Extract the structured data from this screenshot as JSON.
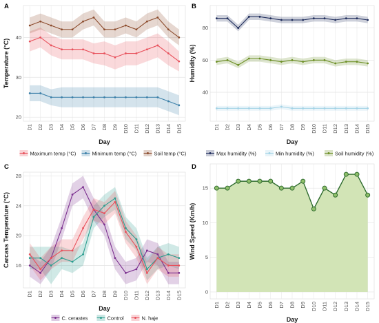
{
  "chart_data": [
    {
      "panel": "A",
      "type": "line",
      "xlabel": "Day",
      "ylabel": "Temperature (°C)",
      "categories": [
        "D1",
        "D2",
        "D3",
        "D4",
        "D5",
        "D6",
        "D7",
        "D8",
        "D9",
        "D10",
        "D11",
        "D12",
        "D13",
        "D14",
        "D15"
      ],
      "ylim": [
        19,
        48
      ],
      "yticks": [
        20,
        30,
        40
      ],
      "grid": true,
      "legend": "bottom",
      "series": [
        {
          "name": "Maximum temp (°C)",
          "color": "#e8505b",
          "values": [
            39,
            40,
            38,
            37,
            37,
            37,
            36,
            36,
            35,
            36,
            36,
            37,
            38,
            36,
            34
          ],
          "band": [
            2.5,
            2.5,
            2.5,
            2.5,
            2.5,
            2.5,
            2.5,
            3,
            3,
            3,
            3,
            3,
            3,
            3,
            2.5
          ]
        },
        {
          "name": "Minimum temp (°C)",
          "color": "#3a7fa8",
          "values": [
            26,
            26,
            25,
            25,
            25,
            25,
            25,
            25,
            25,
            25,
            25,
            25,
            25,
            24,
            23
          ],
          "band": [
            2,
            2,
            2,
            2.5,
            2.5,
            2.5,
            2.5,
            2.5,
            2.5,
            2.5,
            2.5,
            2.5,
            2.5,
            2.5,
            2.5
          ]
        },
        {
          "name": "Soil temp (°C)",
          "color": "#8b4a2b",
          "values": [
            43,
            44,
            43,
            42,
            42,
            44,
            45,
            42,
            42,
            43,
            42,
            44,
            45,
            42,
            40
          ],
          "band": [
            2,
            2,
            2,
            2,
            2,
            2,
            2,
            2,
            2,
            2,
            2,
            2,
            2,
            2,
            2
          ]
        }
      ]
    },
    {
      "panel": "B",
      "type": "line",
      "xlabel": "Day",
      "ylabel": "Humidity (%)",
      "categories": [
        "D1",
        "D2",
        "D3",
        "D4",
        "D5",
        "D6",
        "D7",
        "D8",
        "D9",
        "D10",
        "D11",
        "D12",
        "D13",
        "D14",
        "D15"
      ],
      "ylim": [
        22,
        94
      ],
      "yticks": [
        40,
        60,
        80
      ],
      "grid": true,
      "legend": "bottom",
      "series": [
        {
          "name": "Max humidity (%)",
          "color": "#1f2d5c",
          "values": [
            86,
            86,
            80,
            87,
            87,
            86,
            85,
            85,
            85,
            86,
            86,
            85,
            86,
            86,
            85
          ],
          "band": [
            2,
            2,
            2,
            2,
            2,
            2,
            2,
            2,
            2,
            2,
            2,
            2,
            2,
            2,
            2
          ]
        },
        {
          "name": "Min humidity (%)",
          "color": "#a3d3e6",
          "values": [
            30,
            30,
            30,
            30,
            30,
            30,
            31,
            30,
            30,
            30,
            30,
            30,
            30,
            30,
            30
          ],
          "band": [
            1.5,
            1.5,
            1.5,
            1.5,
            1.5,
            1.5,
            1.5,
            1.5,
            1.5,
            1.5,
            1.5,
            1.5,
            1.5,
            1.5,
            1.5
          ]
        },
        {
          "name": "Soil humidity (%)",
          "color": "#6b8e23",
          "values": [
            59,
            60,
            57,
            61,
            61,
            60,
            59,
            60,
            59,
            60,
            60,
            58,
            59,
            59,
            58
          ],
          "band": [
            2,
            2,
            2,
            2,
            2,
            2,
            2,
            2,
            2,
            2,
            2,
            2,
            2,
            2,
            2
          ]
        }
      ]
    },
    {
      "panel": "C",
      "type": "line",
      "xlabel": "Day",
      "ylabel": "Carcass Temperature (°C)",
      "categories": [
        "D1",
        "D2",
        "D3",
        "D4",
        "D5",
        "D6",
        "D7",
        "D8",
        "D9",
        "D10",
        "D11",
        "D12",
        "D13",
        "D14",
        "D15"
      ],
      "ylim": [
        13,
        28.5
      ],
      "yticks": [
        16,
        20,
        24,
        28
      ],
      "grid": true,
      "legend": "bottom",
      "series": [
        {
          "name": "C. cerastes",
          "color": "#7b2f8f",
          "values": [
            16,
            15,
            17,
            21,
            25.5,
            26.5,
            23.5,
            21.5,
            17,
            15,
            15.5,
            18,
            17.5,
            15,
            15
          ],
          "band": [
            1.5,
            1.5,
            1.5,
            1.5,
            1.5,
            1.5,
            1.5,
            1.5,
            1.5,
            1.5,
            1.5,
            1.5,
            1.5,
            1.5,
            1.5
          ]
        },
        {
          "name": "Control",
          "color": "#2a9d8f",
          "values": [
            17,
            17,
            16,
            17,
            16.5,
            17.5,
            22.5,
            24,
            25,
            21,
            19.5,
            15.5,
            17,
            17.5,
            17
          ],
          "band": [
            1.5,
            1.5,
            2.5,
            1.5,
            1.5,
            1.5,
            1.5,
            1.5,
            1.5,
            1.5,
            1.5,
            1.5,
            1.5,
            1.5,
            1.5
          ]
        },
        {
          "name": "N. haje",
          "color": "#e8505b",
          "values": [
            17.5,
            15.5,
            17,
            18,
            18,
            21,
            23.5,
            23,
            24.5,
            20.5,
            18.5,
            15,
            17,
            16,
            16
          ],
          "band": [
            1.5,
            1.5,
            1.5,
            1.5,
            1.5,
            1.5,
            1.5,
            1.5,
            1.5,
            1.5,
            1.5,
            1.5,
            1.5,
            1.5,
            1.5
          ]
        }
      ]
    },
    {
      "panel": "D",
      "type": "area",
      "xlabel": "Day",
      "ylabel": "Wind Speed (Km/h)",
      "categories": [
        "D1",
        "D2",
        "D3",
        "D4",
        "D5",
        "D6",
        "D7",
        "D8",
        "D9",
        "D10",
        "D11",
        "D12",
        "D13",
        "D14",
        "D15"
      ],
      "ylim": [
        -1,
        18.5
      ],
      "yticks": [
        0,
        5,
        10,
        15
      ],
      "grid": true,
      "series": [
        {
          "color": "#2e6b2e",
          "fill": "#d2e4b6",
          "values": [
            15,
            15,
            16,
            16,
            16,
            16,
            15,
            15,
            16,
            12,
            15,
            14,
            17,
            17,
            14
          ]
        }
      ]
    }
  ]
}
